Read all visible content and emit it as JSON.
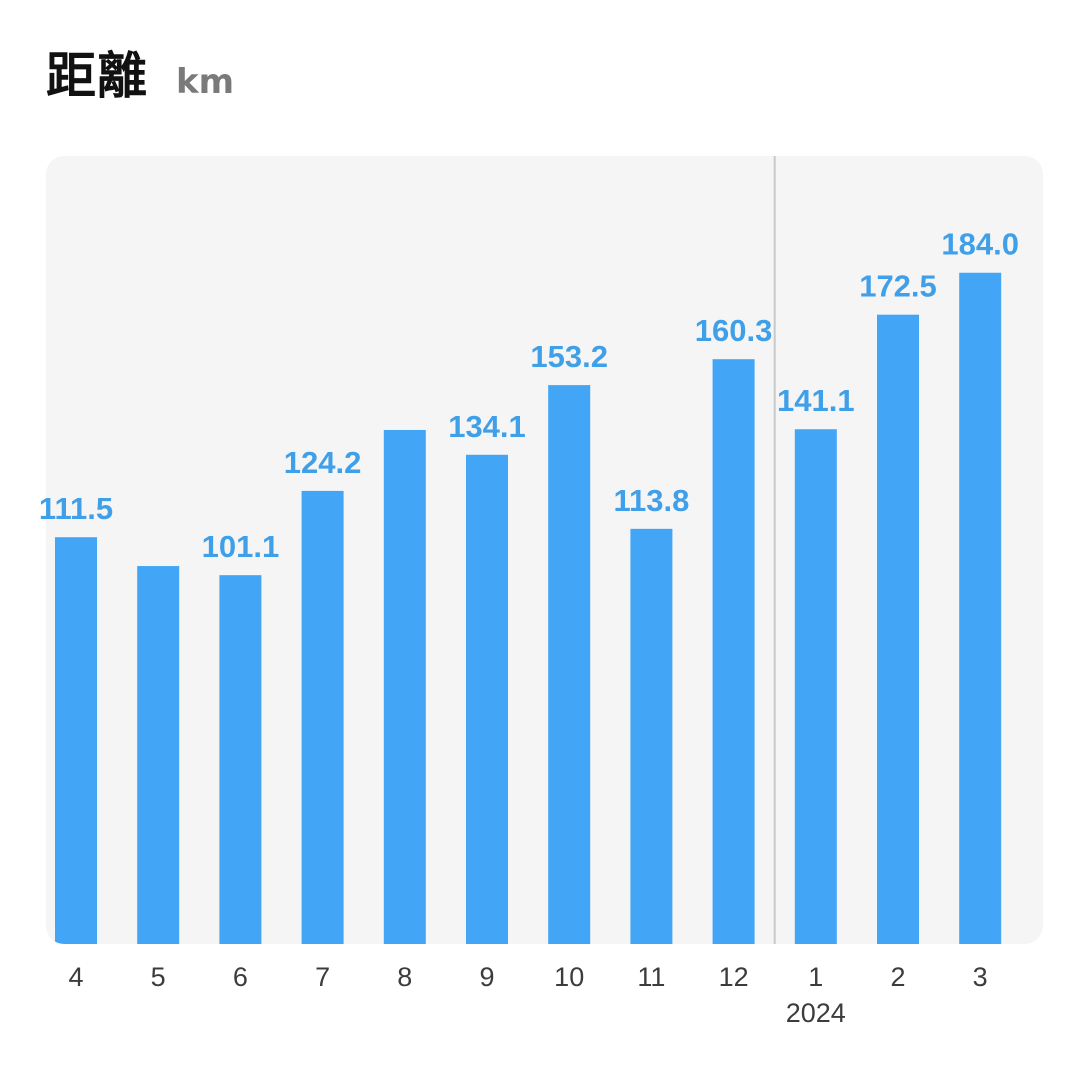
{
  "header": {
    "title": "距離",
    "unit": "km"
  },
  "colors": {
    "bar": "#42a5f5",
    "label": "#3f9fe8",
    "plot_background": "#f5f5f5",
    "divider": "#c8c8c8",
    "tick_text": "#3c3c3c"
  },
  "chart_data": {
    "type": "bar",
    "categories": [
      "4",
      "5",
      "6",
      "7",
      "8",
      "9",
      "10",
      "11",
      "12",
      "1",
      "2",
      "3"
    ],
    "series": [
      {
        "values": [
          111.5,
          103.6,
          101.1,
          124.2,
          140.9,
          134.1,
          153.2,
          113.8,
          160.3,
          141.1,
          172.5,
          184.0
        ]
      }
    ],
    "data_labels": [
      "111.5",
      "",
      "101.1",
      "124.2",
      "",
      "134.1",
      "153.2",
      "113.8",
      "160.3",
      "141.1",
      "172.5",
      "184.0"
    ],
    "year_marker": {
      "category_index": 9,
      "label": "2024"
    },
    "ylim": [
      0,
      216
    ],
    "grid": false,
    "legend": "none"
  }
}
